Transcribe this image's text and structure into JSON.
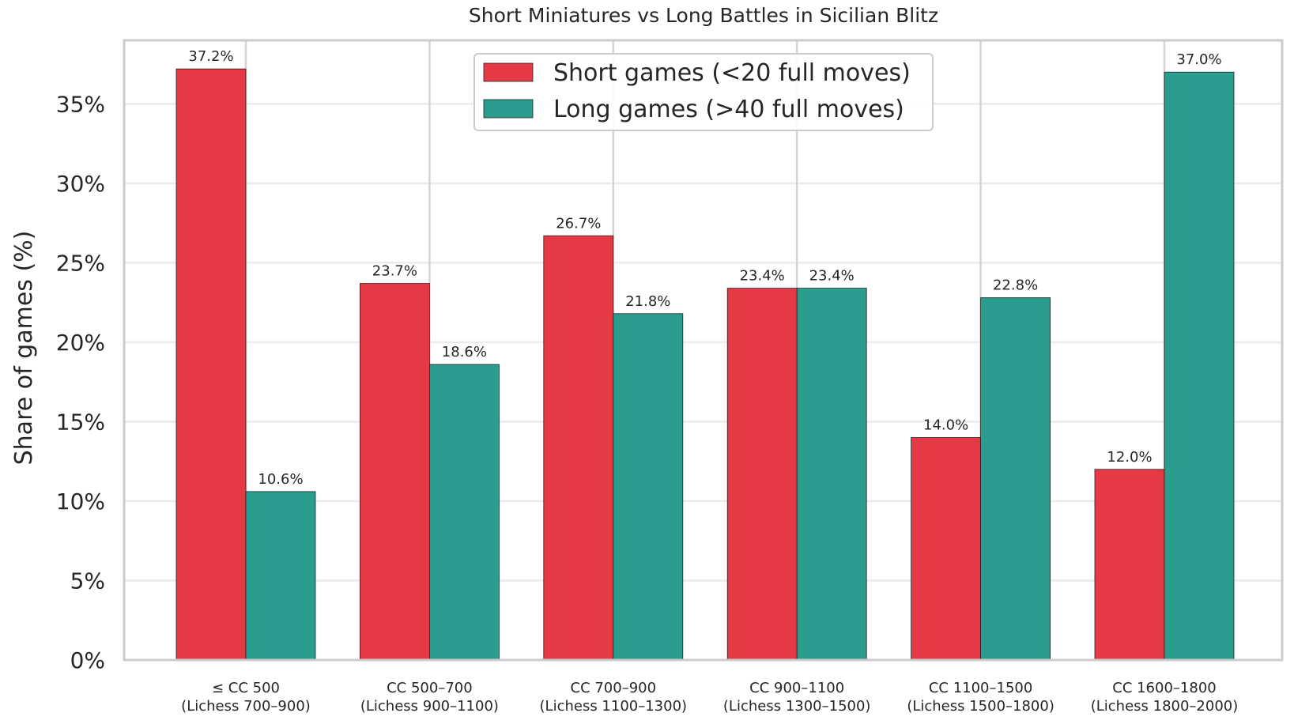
{
  "chart_data": {
    "type": "bar",
    "title": "Short Miniatures vs Long Battles in Sicilian Blitz",
    "xlabel": "",
    "ylabel": "Share of games (%)",
    "ylim": [
      0,
      39
    ],
    "yticks": [
      0,
      5,
      10,
      15,
      20,
      25,
      30,
      35
    ],
    "ytick_labels": [
      "0%",
      "5%",
      "10%",
      "15%",
      "20%",
      "25%",
      "30%",
      "35%"
    ],
    "categories": [
      [
        "≤ CC 500",
        "(Lichess 700–900)"
      ],
      [
        "CC 500–700",
        "(Lichess 900–1100)"
      ],
      [
        "CC 700–900",
        "(Lichess 1100–1300)"
      ],
      [
        "CC 900–1100",
        "(Lichess 1300–1500)"
      ],
      [
        "CC 1100–1500",
        "(Lichess 1500–1800)"
      ],
      [
        "CC 1600–1800",
        "(Lichess 1800–2000)"
      ]
    ],
    "series": [
      {
        "name": "Short games (<20 full moves)",
        "color": "#E63946",
        "values": [
          37.2,
          23.7,
          26.7,
          23.4,
          14.0,
          12.0
        ],
        "labels": [
          "37.2%",
          "23.7%",
          "26.7%",
          "23.4%",
          "14.0%",
          "12.0%"
        ]
      },
      {
        "name": "Long games (>40 full moves)",
        "color": "#2A9D8F",
        "values": [
          10.6,
          18.6,
          21.8,
          23.4,
          22.8,
          37.0
        ],
        "labels": [
          "10.6%",
          "18.6%",
          "21.8%",
          "23.4%",
          "22.8%",
          "37.0%"
        ]
      }
    ],
    "grid": true,
    "legend": "top-center"
  }
}
